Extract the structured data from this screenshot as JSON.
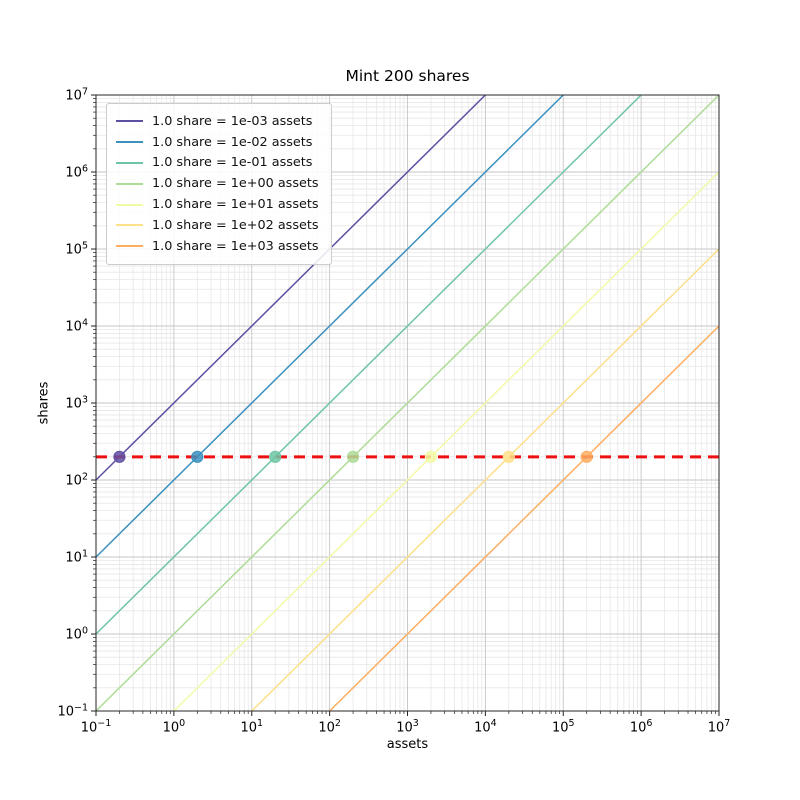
{
  "figure": {
    "title": "Mint 200 shares",
    "xlabel": "assets",
    "ylabel": "shares"
  },
  "chart_data": {
    "type": "line",
    "title": "Mint 200 shares",
    "xlabel": "assets",
    "ylabel": "shares",
    "xscale": "log",
    "yscale": "log",
    "xlim": [
      0.1,
      10000000
    ],
    "ylim": [
      0.1,
      10000000
    ],
    "x_tick_exponents": [
      -1,
      0,
      1,
      2,
      3,
      4,
      5,
      6,
      7
    ],
    "y_tick_exponents": [
      -1,
      0,
      1,
      2,
      3,
      4,
      5,
      6,
      7
    ],
    "grid": {
      "major": true,
      "minor": true,
      "major_color": "#c6c6c6",
      "minor_color": "#e7e7e7"
    },
    "legend_position": "upper left",
    "series": [
      {
        "label": "1.0 share = 1e-03 assets",
        "assets_per_share": 0.001,
        "color": "#5e4fa2",
        "intersection": {
          "assets": 0.2,
          "shares": 200
        }
      },
      {
        "label": "1.0 share = 1e-02 assets",
        "assets_per_share": 0.01,
        "color": "#3a90bf",
        "intersection": {
          "assets": 2,
          "shares": 200
        }
      },
      {
        "label": "1.0 share = 1e-01 assets",
        "assets_per_share": 0.1,
        "color": "#6ec5a4",
        "intersection": {
          "assets": 20,
          "shares": 200
        }
      },
      {
        "label": "1.0 share = 1e+00 assets",
        "assets_per_share": 1,
        "color": "#aedc97",
        "intersection": {
          "assets": 200,
          "shares": 200
        }
      },
      {
        "label": "1.0 share = 1e+01 assets",
        "assets_per_share": 10,
        "color": "#f3faa5",
        "intersection": {
          "assets": 2000,
          "shares": 200
        }
      },
      {
        "label": "1.0 share = 1e+02 assets",
        "assets_per_share": 100,
        "color": "#fee08b",
        "intersection": {
          "assets": 20000,
          "shares": 200
        }
      },
      {
        "label": "1.0 share = 1e+03 assets",
        "assets_per_share": 1000,
        "color": "#fdae61",
        "intersection": {
          "assets": 200000,
          "shares": 200
        }
      }
    ],
    "target_line": {
      "shares": 200,
      "color": "#ee1111",
      "style": "dashed"
    }
  }
}
